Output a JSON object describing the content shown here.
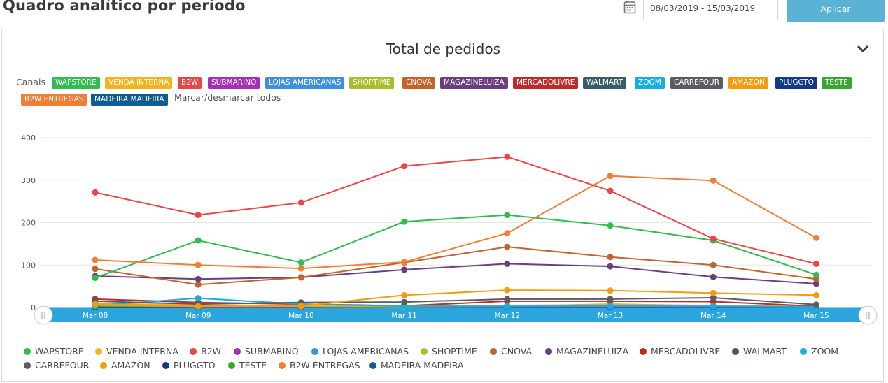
{
  "header": {
    "title": "Quadro analítico por período",
    "date_range": "08/03/2019 - 15/03/2019",
    "apply_label": "Aplicar"
  },
  "panel": {
    "title": "Total de pedidos",
    "channels_label": "Canais",
    "toggle_all_label": "Marcar/desmarcar todos"
  },
  "channels": [
    {
      "name": "WAPSTORE",
      "color": "#2ebd4e"
    },
    {
      "name": "VENDA INTERNA",
      "color": "#f5b21c"
    },
    {
      "name": "B2W",
      "color": "#ec4548"
    },
    {
      "name": "SUBMARINO",
      "color": "#a431b5"
    },
    {
      "name": "LOJAS AMERICANAS",
      "color": "#3d8fe0"
    },
    {
      "name": "SHOPTIME",
      "color": "#a9bd2b"
    },
    {
      "name": "CNOVA",
      "color": "#c2622c"
    },
    {
      "name": "MAGAZINELUIZA",
      "color": "#6b3e7f"
    },
    {
      "name": "MERCADOLIVRE",
      "color": "#c02a2a"
    },
    {
      "name": "WALMART",
      "color": "#3a5c68"
    },
    {
      "name": "ZOOM",
      "color": "#18aee3"
    },
    {
      "name": "CARREFOUR",
      "color": "#595c61"
    },
    {
      "name": "AMAZON",
      "color": "#f59b0f"
    },
    {
      "name": "PLUGGTO",
      "color": "#16388a"
    },
    {
      "name": "TESTE",
      "color": "#3aa531"
    },
    {
      "name": "B2W ENTREGAS",
      "color": "#f07f35"
    },
    {
      "name": "MADEIRA MADEIRA",
      "color": "#0f5d8e"
    }
  ],
  "chart_data": {
    "type": "line",
    "title": "Total de pedidos",
    "categories": [
      "Mar 08",
      "Mar 09",
      "Mar 10",
      "Mar 11",
      "Mar 12",
      "Mar 13",
      "Mar 14",
      "Mar 15"
    ],
    "yticks": [
      0,
      100,
      200,
      300,
      400
    ],
    "ylim": [
      0,
      400
    ],
    "grid": true,
    "legend_position": "bottom",
    "series": [
      {
        "name": "WAPSTORE",
        "values": [
          70,
          158,
          106,
          202,
          218,
          193,
          158,
          77
        ]
      },
      {
        "name": "VENDA INTERNA",
        "values": [
          10,
          5,
          5,
          4,
          5,
          6,
          5,
          4
        ]
      },
      {
        "name": "B2W",
        "values": [
          271,
          218,
          247,
          333,
          355,
          275,
          162,
          103
        ]
      },
      {
        "name": "SUBMARINO",
        "values": [
          3,
          2,
          2,
          2,
          2,
          2,
          2,
          2
        ]
      },
      {
        "name": "LOJAS AMERICANAS",
        "values": [
          4,
          3,
          3,
          3,
          3,
          3,
          3,
          3
        ]
      },
      {
        "name": "SHOPTIME",
        "values": [
          5,
          3,
          3,
          2,
          3,
          8,
          4,
          2
        ]
      },
      {
        "name": "CNOVA",
        "values": [
          91,
          54,
          71,
          106,
          143,
          119,
          100,
          67
        ]
      },
      {
        "name": "MAGAZINELUIZA",
        "values": [
          74,
          67,
          71,
          89,
          103,
          97,
          72,
          56
        ]
      },
      {
        "name": "MERCADOLIVRE",
        "values": [
          20,
          12,
          8,
          4,
          15,
          15,
          14,
          3
        ]
      },
      {
        "name": "WALMART",
        "values": [
          6,
          5,
          5,
          5,
          5,
          5,
          4,
          3
        ]
      },
      {
        "name": "ZOOM",
        "values": [
          5,
          22,
          8,
          3,
          3,
          4,
          3,
          2
        ]
      },
      {
        "name": "CARREFOUR",
        "values": [
          15,
          8,
          12,
          13,
          20,
          20,
          23,
          7
        ]
      },
      {
        "name": "AMAZON",
        "values": [
          8,
          3,
          4,
          29,
          41,
          40,
          34,
          29
        ]
      },
      {
        "name": "PLUGGTO",
        "values": [
          2,
          2,
          2,
          2,
          2,
          2,
          2,
          2
        ]
      },
      {
        "name": "TESTE",
        "values": [
          3,
          3,
          3,
          3,
          3,
          6,
          3,
          2
        ]
      },
      {
        "name": "B2W ENTREGAS",
        "values": [
          112,
          100,
          92,
          107,
          175,
          310,
          299,
          164
        ]
      },
      {
        "name": "MADEIRA MADEIRA",
        "values": [
          1,
          1,
          1,
          1,
          1,
          1,
          1,
          1
        ]
      }
    ]
  }
}
